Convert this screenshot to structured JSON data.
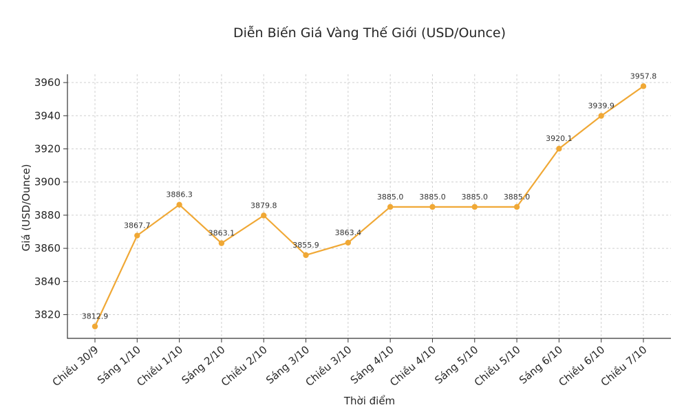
{
  "chart_data": {
    "type": "line",
    "title": "Diễn Biến Giá Vàng Thế Giới (USD/Ounce)",
    "xlabel": "Thời điểm",
    "ylabel": "Giá (USD/Ounce)",
    "categories": [
      "Chiều 30/9",
      "Sáng 1/10",
      "Chiều 1/10",
      "Sáng 2/10",
      "Chiều 2/10",
      "Sáng 3/10",
      "Chiều 3/10",
      "Sáng 4/10",
      "Chiều 4/10",
      "Sáng 5/10",
      "Chiều 5/10",
      "Sáng 6/10",
      "Chiều 6/10",
      "Chiều 7/10"
    ],
    "series": [
      {
        "values": [
          3812.9,
          3867.7,
          3886.3,
          3863.1,
          3879.8,
          3855.9,
          3863.4,
          3885.0,
          3885.0,
          3885.0,
          3885.0,
          3920.1,
          3939.9,
          3957.8
        ],
        "labels": [
          "3812.9",
          "3867.7",
          "3886.3",
          "3863.1",
          "3879.8",
          "3855.9",
          "3863.4",
          "3885.0",
          "3885.0",
          "3885.0",
          "3885.0",
          "3920.1",
          "3939.9",
          "3957.8"
        ],
        "color": "#f0a835"
      }
    ],
    "yticks": [
      3820,
      3840,
      3860,
      3880,
      3900,
      3920,
      3940,
      3960
    ],
    "ytick_labels": [
      "3820",
      "3840",
      "3860",
      "3880",
      "3900",
      "3920",
      "3940",
      "3960"
    ],
    "ylim": [
      3805.7,
      3965.0
    ],
    "grid": true,
    "legend": "none"
  }
}
